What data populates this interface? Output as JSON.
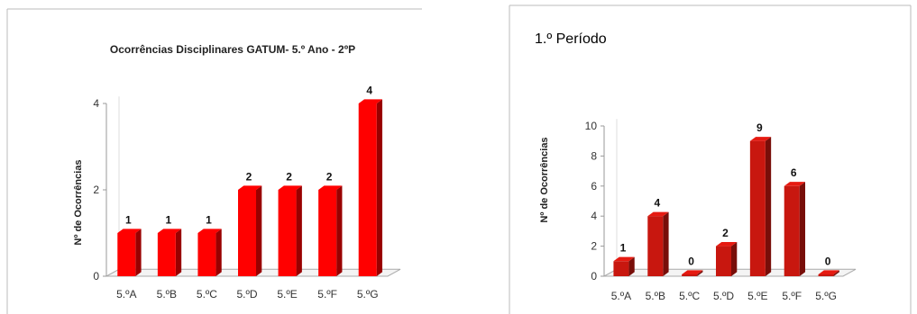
{
  "chart_data": [
    {
      "type": "bar",
      "title": "Ocorrências Disciplinares GATUM- 5.º Ano - 2ºP",
      "xlabel": "",
      "ylabel": "Nº de Ocorrências",
      "categories": [
        "5.ºA",
        "5.ºB",
        "5.ºC",
        "5.ºD",
        "5.ºE",
        "5.ºF",
        "5.ºG"
      ],
      "values": [
        1,
        1,
        1,
        2,
        2,
        2,
        4
      ],
      "ylim": [
        0,
        4
      ],
      "yticks": [
        "0",
        "2",
        "4"
      ],
      "data_labels": [
        "1",
        "1",
        "1",
        "2",
        "2",
        "2",
        "4"
      ],
      "grid": false,
      "legend": "none",
      "color": "#ff0000"
    },
    {
      "type": "bar",
      "title": "1.º Período",
      "xlabel": "",
      "ylabel": "Nº de Ocorrências",
      "categories": [
        "5.ºA",
        "5.ºB",
        "5.ºC",
        "5.ºD",
        "5.ºE",
        "5.ºF",
        "5.ºG"
      ],
      "values": [
        1,
        4,
        0,
        2,
        9,
        6,
        0
      ],
      "ylim": [
        0,
        10
      ],
      "yticks": [
        "0",
        "2",
        "4",
        "6",
        "8",
        "10"
      ],
      "data_labels": [
        "1",
        "4",
        "0",
        "2",
        "9",
        "6",
        "0"
      ],
      "grid": false,
      "legend": "none",
      "color": "#c8170f"
    }
  ]
}
